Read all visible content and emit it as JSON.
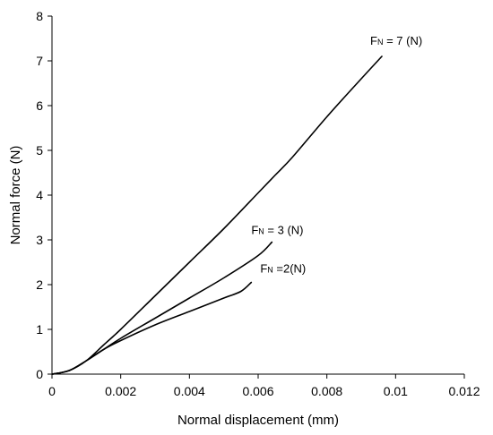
{
  "chart_data": {
    "type": "line",
    "title": "",
    "xlabel": "Normal displacement  (mm)",
    "ylabel": "Normal force (N)",
    "xlim": [
      0,
      0.012
    ],
    "ylim": [
      0,
      8
    ],
    "xticks": [
      "0",
      "0.002",
      "0.004",
      "0.006",
      "0.008",
      "0.01",
      "0.012"
    ],
    "yticks": [
      "0",
      "1",
      "2",
      "3",
      "4",
      "5",
      "6",
      "7",
      "8"
    ],
    "grid": false,
    "legend": "none",
    "series": [
      {
        "label_main": "F",
        "label_sub": "N",
        "label_tail": " = 7 (N)",
        "x": [
          0,
          0.0005,
          0.001,
          0.0015,
          0.002,
          0.003,
          0.004,
          0.005,
          0.006,
          0.0065,
          0.007,
          0.008,
          0.009,
          0.0096
        ],
        "y": [
          0,
          0.08,
          0.3,
          0.65,
          1.0,
          1.75,
          2.5,
          3.25,
          4.05,
          4.45,
          4.85,
          5.75,
          6.6,
          7.1
        ]
      },
      {
        "label_main": "F",
        "label_sub": "N",
        "label_tail": " = 3 (N)",
        "x": [
          0,
          0.0005,
          0.001,
          0.0015,
          0.002,
          0.003,
          0.004,
          0.005,
          0.006,
          0.0064
        ],
        "y": [
          0,
          0.08,
          0.3,
          0.55,
          0.8,
          1.25,
          1.7,
          2.15,
          2.65,
          2.95
        ]
      },
      {
        "label_main": "F",
        "label_sub": "N",
        "label_tail": " =2(N)",
        "x": [
          0,
          0.0005,
          0.001,
          0.0015,
          0.002,
          0.003,
          0.004,
          0.005,
          0.0055,
          0.0058
        ],
        "y": [
          0,
          0.08,
          0.3,
          0.55,
          0.75,
          1.1,
          1.4,
          1.7,
          1.85,
          2.05
        ]
      }
    ]
  }
}
